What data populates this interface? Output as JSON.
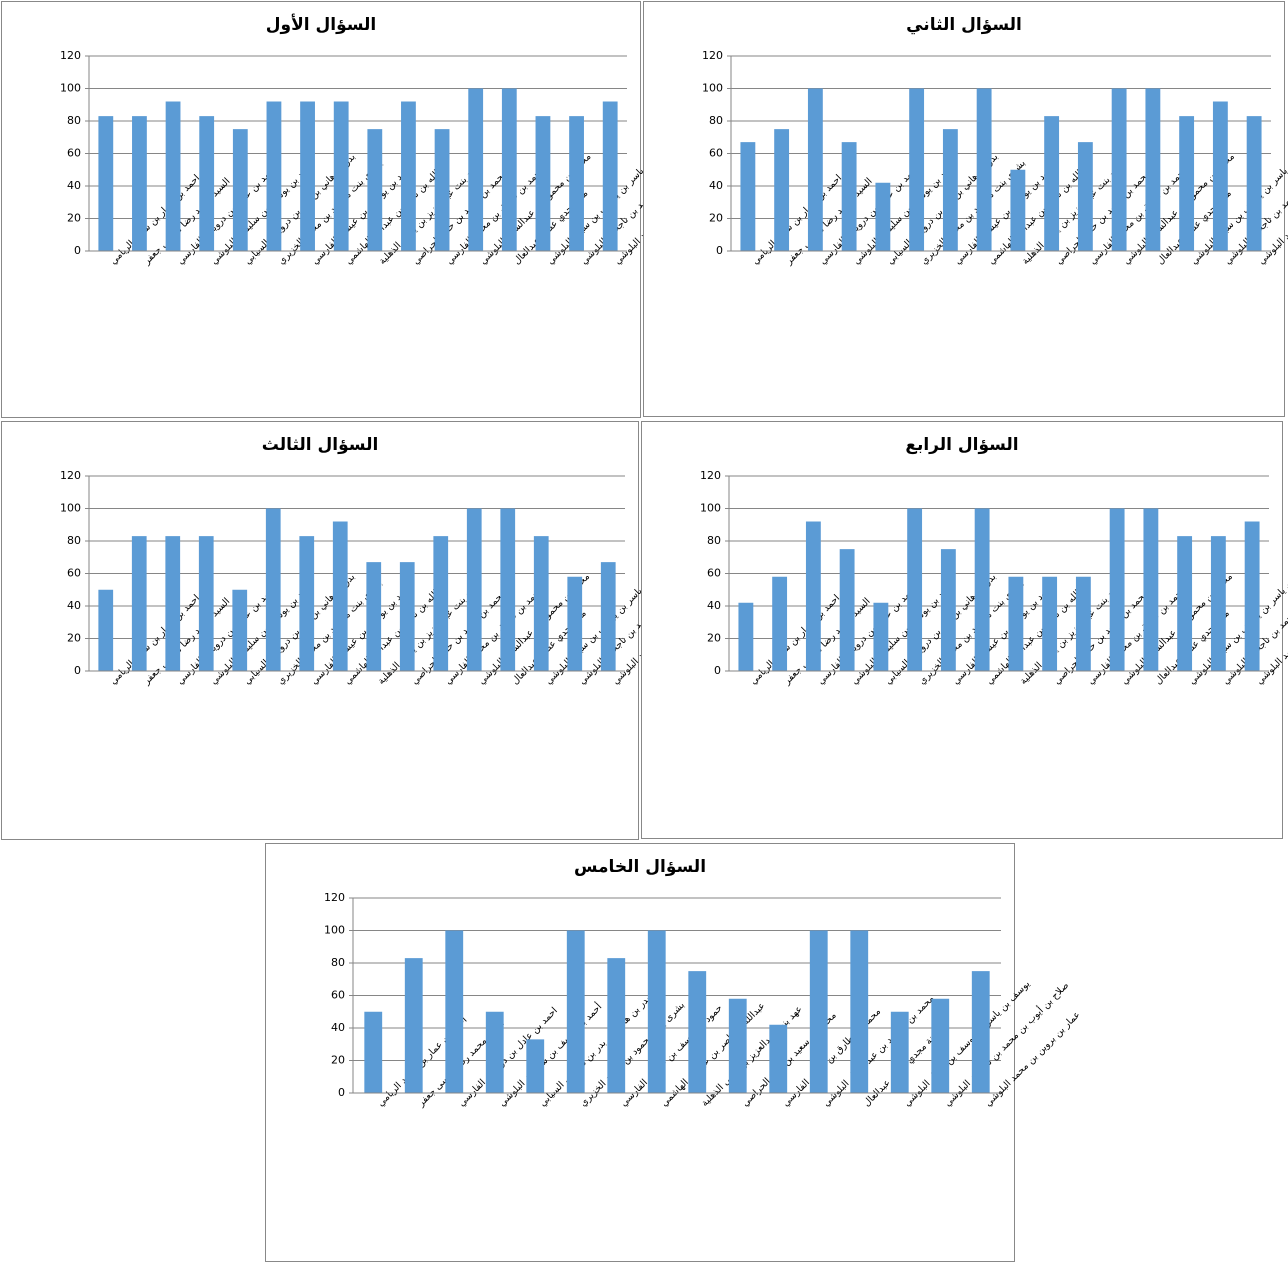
{
  "chart_data": [
    {
      "type": "bar",
      "title": "السؤال الأول",
      "color": "#5b9bd5",
      "grid": true,
      "ylim": [
        0,
        120
      ],
      "yticks": [
        0,
        20,
        40,
        60,
        80,
        100,
        120
      ],
      "categories": [
        "احمد بن عمار بن سعيد الريامي",
        "السيد محمد رضا موسى جعفر",
        "احمد بن عادل بن درويش الفارسي",
        "أحمد بن يوسف بن سليمان البلوشي",
        "بدر بن هاني بن بدر بن درويش السيابي",
        "بشرى بنت محمود بن محمد الخزيري",
        "حمود بن يوسف بن عيسى الفارسي",
        "عبدالله بن ناصر بن عبدالله الهاشمي",
        "عهد بنت عبدالعزيز بن يحيى الذهلية",
        "محمد بن سعيد بن حمد الحراصي",
        "محمد بن طارق بن محمد الفارسي",
        "محمد بن محمود بن عبدالستار البلوشي",
        "منة مجدي عطيه عبدالعال",
        "يوسف بن ياسر بن يوسف بن سبيل البلوشي",
        "صلاح بن أيوب بن محمد بن ناجحان البلوشي",
        "عمار بن بروين بن محمد البلوشي"
      ],
      "values": [
        83,
        83,
        92,
        83,
        75,
        92,
        92,
        92,
        75,
        92,
        75,
        100,
        100,
        83,
        83,
        92
      ]
    },
    {
      "type": "bar",
      "title": "السؤال الثاني",
      "color": "#5b9bd5",
      "grid": true,
      "ylim": [
        0,
        120
      ],
      "yticks": [
        0,
        20,
        40,
        60,
        80,
        100,
        120
      ],
      "categories": [
        "احمد بن عمار بن سعيد الريامي",
        "السيد محمد رضا موسى جعفر",
        "احمد بن عادل بن درويش الفارسي",
        "أحمد بن يوسف بن سليمان البلوشي",
        "بدر بن هاني بن بدر بن درويش السيابي",
        "بشرى بنت محمود بن محمد الخزيري",
        "حمود بن يوسف بن عيسى الفارسي",
        "عبدالله بن ناصر بن عبدالله الهاشمي",
        "عهد بنت عبدالعزيز بن يحيى الذهلية",
        "محمد بن سعيد بن حمد الحراصي",
        "محمد بن طارق بن محمد الفارسي",
        "محمد بن محمود بن عبدالستار البلوشي",
        "منة مجدي عطيه عبدالعال",
        "يوسف بن ياسر بن يوسف بن سبيل البلوشي",
        "صلاح بن أيوب بن محمد بن ناجحان البلوشي",
        "عمار بن بروين بن محمد البلوشي"
      ],
      "values": [
        67,
        75,
        100,
        67,
        42,
        100,
        75,
        100,
        50,
        83,
        67,
        100,
        100,
        83,
        92,
        83
      ]
    },
    {
      "type": "bar",
      "title": "السؤال الثالث",
      "color": "#5b9bd5",
      "grid": true,
      "ylim": [
        0,
        120
      ],
      "yticks": [
        0,
        20,
        40,
        60,
        80,
        100,
        120
      ],
      "categories": [
        "احمد بن عمار بن سعيد الريامي",
        "السيد محمد رضا موسى جعفر",
        "احمد بن عادل بن درويش الفارسي",
        "أحمد بن يوسف بن سليمان البلوشي",
        "بدر بن هاني بن بدر بن درويش السيابي",
        "بشرى بنت محمود بن محمد الخزيري",
        "حمود بن يوسف بن عيسى الفارسي",
        "عبدالله بن ناصر بن عبدالله الهاشمي",
        "عهد بنت عبدالعزيز بن يحيى الذهلية",
        "محمد بن سعيد بن حمد الحراصي",
        "محمد بن طارق بن محمد الفارسي",
        "محمد بن محمود بن عبدالستار البلوشي",
        "منة مجدي عطيه عبدالعال",
        "يوسف بن ياسر بن يوسف بن سبيل البلوشي",
        "صلاح بن أيوب بن محمد بن ناجحان البلوشي",
        "عمار بن بروين بن محمد البلوشي"
      ],
      "values": [
        50,
        83,
        83,
        83,
        50,
        100,
        83,
        92,
        67,
        67,
        83,
        100,
        100,
        83,
        58,
        67
      ]
    },
    {
      "type": "bar",
      "title": "السؤال الرابع",
      "color": "#5b9bd5",
      "grid": true,
      "ylim": [
        0,
        120
      ],
      "yticks": [
        0,
        20,
        40,
        60,
        80,
        100,
        120
      ],
      "categories": [
        "احمد بن عمار بن سعيد الريامي",
        "السيد محمد رضا موسى جعفر",
        "احمد بن عادل بن درويش الفارسي",
        "أحمد بن يوسف بن سليمان البلوشي",
        "بدر بن هاني بن بدر بن درويش السيابي",
        "بشرى بنت محمود بن محمد الخزيري",
        "حمود بن يوسف بن عيسى الفارسي",
        "عبدالله بن ناصر بن عبدالله الهاشمي",
        "عهد بنت عبدالعزيز بن يحيى الذهلية",
        "محمد بن سعيد بن حمد الحراصي",
        "محمد بن طارق بن محمد الفارسي",
        "محمد بن محمود بن عبدالستار البلوشي",
        "منة مجدي عطيه عبدالعال",
        "يوسف بن ياسر بن يوسف بن سبيل البلوشي",
        "صلاح بن أيوب بن محمد بن ناجحان البلوشي",
        "عمار بن بروين بن محمد البلوشي"
      ],
      "values": [
        42,
        58,
        92,
        75,
        42,
        100,
        75,
        100,
        58,
        58,
        58,
        100,
        100,
        83,
        83,
        92
      ]
    },
    {
      "type": "bar",
      "title": "السؤال الخامس",
      "color": "#5b9bd5",
      "grid": true,
      "ylim": [
        0,
        120
      ],
      "yticks": [
        0,
        20,
        40,
        60,
        80,
        100,
        120
      ],
      "categories": [
        "احمد بن عمار بن سعيد الريامي",
        "السيد محمد رضا موسى جعفر",
        "احمد بن عادل بن درويش الفارسي",
        "أحمد بن يوسف بن سليمان البلوشي",
        "بدر بن هاني بن بدر بن درويش السيابي",
        "بشرى بنت محمود بن محمد الخزيري",
        "حمود بن يوسف بن عيسى الفارسي",
        "عبدالله بن ناصر بن عبدالله الهاشمي",
        "عهد بنت عبدالعزيز بن يحيى الذهلية",
        "محمد بن سعيد بن حمد الحراصي",
        "محمد بن طارق بن محمد الفارسي",
        "محمد بن محمود بن عبدالستار البلوشي",
        "منة مجدي عطيه عبدالعال",
        "يوسف بن ياسر بن يوسف بن سبيل البلوشي",
        "صلاح بن أيوب بن محمد بن ناجحان البلوشي",
        "عمار بن بروين بن محمد البلوشي"
      ],
      "values": [
        50,
        83,
        100,
        50,
        33,
        100,
        83,
        100,
        75,
        58,
        42,
        100,
        100,
        50,
        58,
        75
      ]
    }
  ]
}
